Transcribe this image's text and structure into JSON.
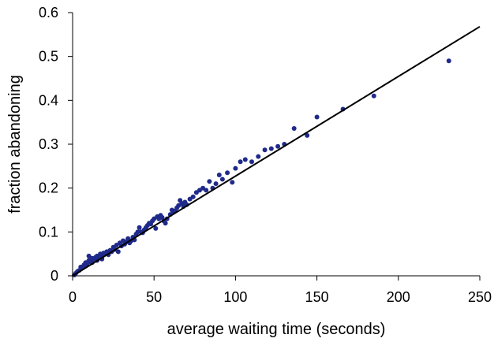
{
  "chart_data": {
    "type": "scatter",
    "title": "",
    "xlabel": "average waiting time (seconds)",
    "ylabel": "fraction abandoning",
    "xlim": [
      0,
      250
    ],
    "ylim": [
      0,
      0.6
    ],
    "x_ticks": [
      "0",
      "50",
      "100",
      "150",
      "200",
      "250"
    ],
    "y_ticks": [
      "0",
      "0.1",
      "0.2",
      "0.3",
      "0.4",
      "0.5",
      "0.6"
    ],
    "grid": false,
    "legend": "none",
    "point_color": "#1f2a8a",
    "line_color": "#000000",
    "fit_line": {
      "x": [
        0,
        250
      ],
      "y": [
        0,
        0.568
      ]
    },
    "points": [
      [
        1,
        0.002
      ],
      [
        2,
        0.006
      ],
      [
        3,
        0.01
      ],
      [
        4,
        0.012
      ],
      [
        5,
        0.015
      ],
      [
        5,
        0.02
      ],
      [
        6,
        0.018
      ],
      [
        7,
        0.025
      ],
      [
        8,
        0.022
      ],
      [
        8,
        0.03
      ],
      [
        9,
        0.028
      ],
      [
        10,
        0.035
      ],
      [
        10,
        0.045
      ],
      [
        11,
        0.032
      ],
      [
        12,
        0.04
      ],
      [
        12,
        0.03
      ],
      [
        13,
        0.038
      ],
      [
        14,
        0.042
      ],
      [
        15,
        0.035
      ],
      [
        15,
        0.045
      ],
      [
        16,
        0.04
      ],
      [
        17,
        0.05
      ],
      [
        18,
        0.045
      ],
      [
        18,
        0.038
      ],
      [
        19,
        0.052
      ],
      [
        20,
        0.05
      ],
      [
        21,
        0.055
      ],
      [
        22,
        0.048
      ],
      [
        23,
        0.058
      ],
      [
        24,
        0.055
      ],
      [
        25,
        0.065
      ],
      [
        26,
        0.06
      ],
      [
        27,
        0.07
      ],
      [
        28,
        0.055
      ],
      [
        29,
        0.075
      ],
      [
        30,
        0.068
      ],
      [
        31,
        0.08
      ],
      [
        32,
        0.072
      ],
      [
        33,
        0.078
      ],
      [
        34,
        0.085
      ],
      [
        35,
        0.075
      ],
      [
        36,
        0.08
      ],
      [
        37,
        0.088
      ],
      [
        38,
        0.082
      ],
      [
        39,
        0.095
      ],
      [
        40,
        0.1
      ],
      [
        41,
        0.11
      ],
      [
        42,
        0.1
      ],
      [
        43,
        0.098
      ],
      [
        44,
        0.105
      ],
      [
        45,
        0.11
      ],
      [
        46,
        0.115
      ],
      [
        47,
        0.12
      ],
      [
        48,
        0.118
      ],
      [
        49,
        0.125
      ],
      [
        50,
        0.13
      ],
      [
        51,
        0.108
      ],
      [
        52,
        0.135
      ],
      [
        53,
        0.13
      ],
      [
        54,
        0.138
      ],
      [
        55,
        0.133
      ],
      [
        56,
        0.125
      ],
      [
        57,
        0.12
      ],
      [
        58,
        0.13
      ],
      [
        60,
        0.14
      ],
      [
        61,
        0.15
      ],
      [
        62,
        0.145
      ],
      [
        63,
        0.148
      ],
      [
        64,
        0.155
      ],
      [
        65,
        0.16
      ],
      [
        66,
        0.172
      ],
      [
        67,
        0.165
      ],
      [
        68,
        0.158
      ],
      [
        69,
        0.168
      ],
      [
        70,
        0.162
      ],
      [
        72,
        0.175
      ],
      [
        74,
        0.18
      ],
      [
        76,
        0.19
      ],
      [
        78,
        0.195
      ],
      [
        80,
        0.2
      ],
      [
        82,
        0.195
      ],
      [
        84,
        0.215
      ],
      [
        86,
        0.2
      ],
      [
        88,
        0.21
      ],
      [
        90,
        0.23
      ],
      [
        92,
        0.22
      ],
      [
        95,
        0.235
      ],
      [
        98,
        0.213
      ],
      [
        100,
        0.245
      ],
      [
        103,
        0.26
      ],
      [
        106,
        0.265
      ],
      [
        110,
        0.26
      ],
      [
        114,
        0.272
      ],
      [
        118,
        0.287
      ],
      [
        122,
        0.29
      ],
      [
        126,
        0.295
      ],
      [
        130,
        0.3
      ],
      [
        136,
        0.336
      ],
      [
        144,
        0.32
      ],
      [
        150,
        0.362
      ],
      [
        166,
        0.38
      ],
      [
        185,
        0.41
      ],
      [
        231,
        0.49
      ]
    ]
  }
}
